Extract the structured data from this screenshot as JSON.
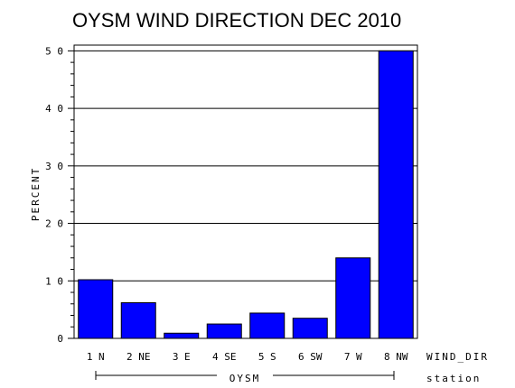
{
  "chart_data": {
    "type": "bar",
    "title": "OYSM WIND DIRECTION DEC 2010",
    "ylabel": "PERCENT",
    "xlabel": "WIND_DIR",
    "group_label": "OYSM",
    "group_axis_label": "station",
    "categories": [
      "1 N",
      "2 NE",
      "3 E",
      "4 SE",
      "5 S",
      "6 SW",
      "7 W",
      "8 NW"
    ],
    "values": [
      10.2,
      6.2,
      0.9,
      2.5,
      4.4,
      3.5,
      14.0,
      50.0
    ],
    "ylim": [
      0,
      51
    ],
    "yticks": [
      0,
      10,
      20,
      30,
      40,
      50
    ],
    "grid": true,
    "bar_color": "#0000ff"
  }
}
